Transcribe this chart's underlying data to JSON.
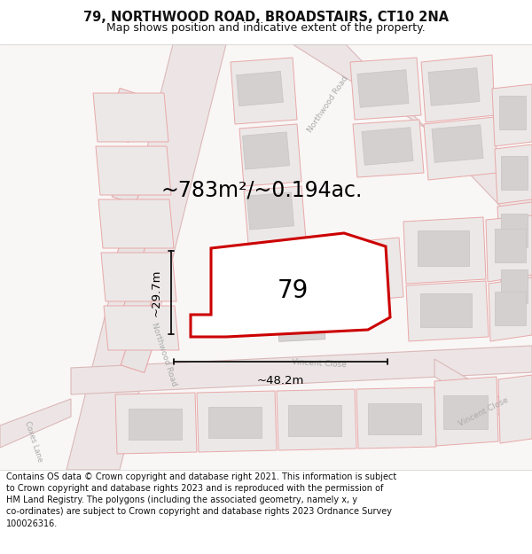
{
  "title": "79, NORTHWOOD ROAD, BROADSTAIRS, CT10 2NA",
  "subtitle": "Map shows position and indicative extent of the property.",
  "area_text": "~783m²/~0.194ac.",
  "width_label": "~48.2m",
  "height_label": "~29.7m",
  "number_label": "79",
  "footer_text": "Contains OS data © Crown copyright and database right 2021. This information is subject to Crown copyright and database rights 2023 and is reproduced with the permission of HM Land Registry. The polygons (including the associated geometry, namely x, y co-ordinates) are subject to Crown copyright and database rights 2023 Ordnance Survey 100026316.",
  "map_bg": "#f9f6f6",
  "road_line_color": "#e8b8b8",
  "road_fill_color": "#f2e8e8",
  "plot_edge_color": "#cc0000",
  "plot_fill_color": "#ffffff",
  "building_fill": "#d4d0d0",
  "building_edge": "#c8c4c4",
  "outline_color": "#e8a8a8",
  "text_color": "#111111",
  "road_label_color": "#aaaaaa",
  "dim_color": "#111111",
  "fig_width": 6.0,
  "fig_height": 6.25,
  "dpi": 100,
  "title_fontsize": 10.5,
  "subtitle_fontsize": 9,
  "area_fontsize": 17,
  "number_fontsize": 20,
  "dim_fontsize": 9.5,
  "road_label_fontsize": 6.5,
  "footer_fontsize": 7.0
}
